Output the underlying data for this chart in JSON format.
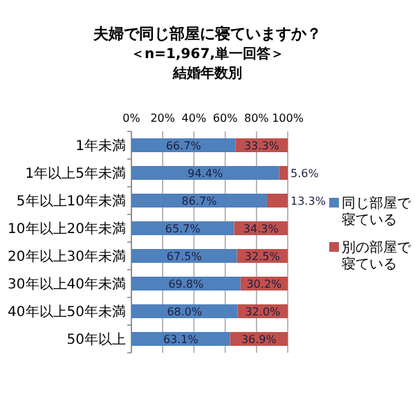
{
  "chart_data": {
    "type": "bar",
    "orientation": "horizontal",
    "stacked": true,
    "title": "夫婦で同じ部屋に寝ていますか？",
    "subtitle": "＜n=1,967,単一回答＞",
    "annotations": [
      "結婚年数別"
    ],
    "categories": [
      "1年未満",
      "1年以上5年未満",
      "5年以上10年未満",
      "10年以上20年未満",
      "20年以上30年未満",
      "30年以上40年未満",
      "40年以上50年未満",
      "50年以上"
    ],
    "series": [
      {
        "name": "同じ部屋で寝ている",
        "color": "#4f81bd",
        "values": [
          66.7,
          94.4,
          86.7,
          65.7,
          67.5,
          69.8,
          68.0,
          63.1
        ]
      },
      {
        "name": "別の部屋で寝ている",
        "color": "#c0504d",
        "values": [
          33.3,
          5.6,
          13.3,
          34.3,
          32.5,
          30.2,
          32.0,
          36.9
        ]
      }
    ],
    "value_labels": [
      [
        "66.7%",
        "94.4%",
        "86.7%",
        "65.7%",
        "67.5%",
        "69.8%",
        "68.0%",
        "63.1%"
      ],
      [
        "33.3%",
        "5.6%",
        "13.3%",
        "34.3%",
        "32.5%",
        "30.2%",
        "32.0%",
        "36.9%"
      ]
    ],
    "xlim": [
      0,
      100
    ],
    "xticks": [
      {
        "value": 0,
        "label": "0%"
      },
      {
        "value": 20,
        "label": "20%"
      },
      {
        "value": 40,
        "label": "40%"
      },
      {
        "value": 60,
        "label": "60%"
      },
      {
        "value": 80,
        "label": "80%"
      },
      {
        "value": 100,
        "label": "100%"
      }
    ],
    "grid": "x",
    "legend": "right"
  }
}
